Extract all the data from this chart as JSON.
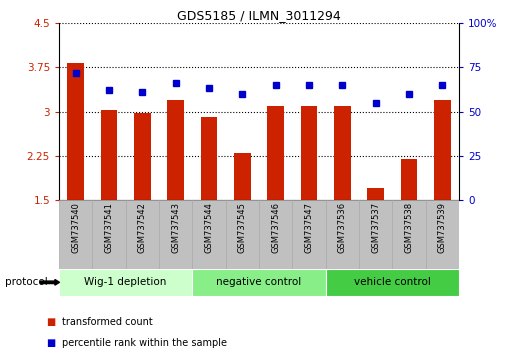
{
  "title": "GDS5185 / ILMN_3011294",
  "samples": [
    "GSM737540",
    "GSM737541",
    "GSM737542",
    "GSM737543",
    "GSM737544",
    "GSM737545",
    "GSM737546",
    "GSM737547",
    "GSM737536",
    "GSM737537",
    "GSM737538",
    "GSM737539"
  ],
  "bar_values": [
    3.82,
    3.02,
    2.97,
    3.2,
    2.9,
    2.3,
    3.1,
    3.1,
    3.1,
    1.7,
    2.2,
    3.2
  ],
  "dot_values": [
    72,
    62,
    61,
    66,
    63,
    60,
    65,
    65,
    65,
    55,
    60,
    65
  ],
  "bar_color": "#cc2200",
  "dot_color": "#0000cc",
  "ylim_left": [
    1.5,
    4.5
  ],
  "ylim_right": [
    0,
    100
  ],
  "yticks_left": [
    1.5,
    2.25,
    3.0,
    3.75,
    4.5
  ],
  "ytick_labels_left": [
    "1.5",
    "2.25",
    "3",
    "3.75",
    "4.5"
  ],
  "yticks_right": [
    0,
    25,
    50,
    75,
    100
  ],
  "ytick_labels_right": [
    "0",
    "25",
    "50",
    "75",
    "100%"
  ],
  "groups": [
    {
      "label": "Wig-1 depletion",
      "start": 0,
      "end": 4,
      "color": "#ccffcc"
    },
    {
      "label": "negative control",
      "start": 4,
      "end": 8,
      "color": "#88ee88"
    },
    {
      "label": "vehicle control",
      "start": 8,
      "end": 12,
      "color": "#44cc44"
    }
  ],
  "group_row_label": "protocol",
  "legend_bar_label": "transformed count",
  "legend_dot_label": "percentile rank within the sample",
  "bar_width": 0.5,
  "tick_area_bg": "#c0c0c0"
}
